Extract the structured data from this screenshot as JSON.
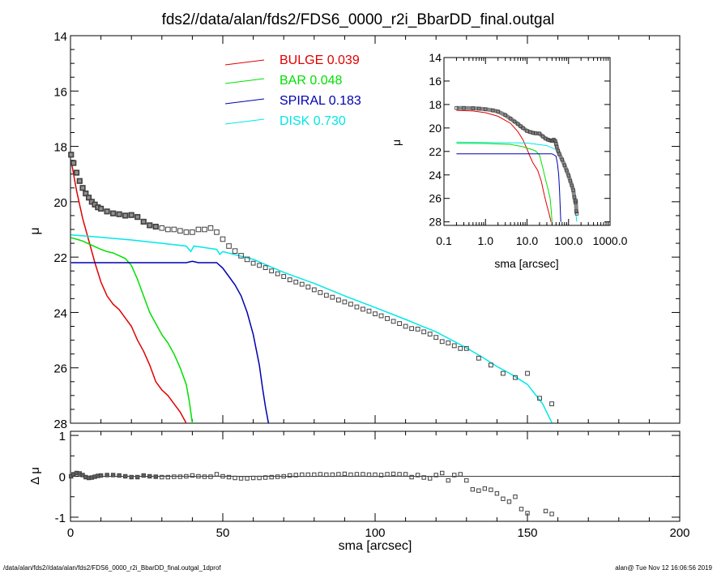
{
  "title": "fds2//data/alan/fds2/FDS6_0000_r2i_BbarDD_final.outgal",
  "footer": {
    "left": "/data/alan/fds2//data/alan/fds2/FDS6_0000_r2i_BbarDD_final.outgal_1dprof",
    "right": "alan@  Tue Nov 12 16:06:56 2019"
  },
  "colors": {
    "bulge": "#e00000",
    "bar": "#00e000",
    "spiral": "#0000b0",
    "disk": "#00e8e8",
    "data": "#404040"
  },
  "chart_data": [
    {
      "type": "line",
      "panel": "main-profile",
      "xlabel": "",
      "ylabel": "μ",
      "xlim": [
        0,
        200
      ],
      "ylim": [
        28,
        14
      ],
      "y_inverted": true,
      "xticks": [
        0,
        50,
        100,
        150,
        200
      ],
      "yticks": [
        14,
        16,
        18,
        20,
        22,
        24,
        26,
        28
      ],
      "xtick_labels": [
        "",
        "",
        "",
        "",
        ""
      ],
      "ytick_labels": [
        "14",
        "16",
        "18",
        "20",
        "22",
        "24",
        "26",
        "28"
      ],
      "legend_position": "top-center",
      "legend": [
        {
          "name": "BULGE",
          "value": "0.039",
          "color": "#e00000"
        },
        {
          "name": "BAR",
          "value": "0.048",
          "color": "#00e000"
        },
        {
          "name": "SPIRAL",
          "value": "0.183",
          "color": "#0000b0"
        },
        {
          "name": "DISK",
          "value": "0.730",
          "color": "#00e8e8"
        }
      ],
      "series": [
        {
          "name": "BULGE",
          "color": "#e00000",
          "x": [
            0.2,
            1,
            2,
            4,
            6,
            8,
            10,
            12,
            14,
            16,
            18,
            20,
            22,
            24,
            26,
            28,
            30,
            32,
            34,
            36,
            38
          ],
          "y": [
            18.5,
            19.0,
            19.6,
            20.6,
            21.4,
            22.2,
            22.9,
            23.4,
            23.7,
            23.9,
            24.2,
            24.5,
            25.0,
            25.4,
            25.9,
            26.5,
            26.8,
            27.0,
            27.3,
            27.6,
            28.0
          ]
        },
        {
          "name": "BAR",
          "color": "#00e000",
          "x": [
            0.2,
            2,
            4,
            6,
            8,
            10,
            12,
            14,
            16,
            18,
            20,
            22,
            24,
            26,
            28,
            30,
            32,
            34,
            36,
            38,
            39,
            39.5,
            40
          ],
          "y": [
            21.3,
            21.35,
            21.42,
            21.52,
            21.62,
            21.72,
            21.8,
            21.85,
            21.95,
            22.05,
            22.3,
            22.8,
            23.4,
            24.0,
            24.4,
            24.8,
            25.1,
            25.5,
            26.0,
            26.6,
            27.2,
            27.6,
            28.0
          ]
        },
        {
          "name": "SPIRAL",
          "color": "#0000b0",
          "x": [
            0.2,
            10,
            20,
            30,
            38,
            40,
            42,
            48,
            50,
            52,
            54,
            56,
            58,
            60,
            62,
            63,
            64,
            65
          ],
          "y": [
            22.2,
            22.2,
            22.2,
            22.2,
            22.2,
            22.15,
            22.2,
            22.2,
            22.4,
            22.7,
            23.0,
            23.4,
            24.0,
            24.8,
            25.9,
            26.7,
            27.4,
            28.0
          ]
        },
        {
          "name": "DISK",
          "color": "#00e8e8",
          "x": [
            0.2,
            10,
            20,
            30,
            38,
            39.5,
            40.5,
            48,
            49,
            50,
            60,
            70,
            80,
            90,
            100,
            110,
            120,
            130,
            135,
            140,
            145,
            150,
            155,
            158
          ],
          "y": [
            21.2,
            21.28,
            21.38,
            21.5,
            21.6,
            21.8,
            21.6,
            21.72,
            21.9,
            21.8,
            22.08,
            22.55,
            22.95,
            23.4,
            23.82,
            24.25,
            24.7,
            25.28,
            25.6,
            25.95,
            26.25,
            26.6,
            27.3,
            27.98
          ]
        },
        {
          "name": "data",
          "color": "#404040",
          "style": "markers",
          "x": [
            0.2,
            1,
            2,
            3,
            4,
            5,
            6,
            7,
            8,
            9,
            10,
            12,
            14,
            16,
            18,
            20,
            22,
            24,
            26,
            28,
            30,
            32,
            34,
            36,
            38,
            40,
            42,
            44,
            46,
            48,
            50,
            52,
            54,
            56,
            58,
            60,
            62,
            64,
            66,
            68,
            70,
            72,
            74,
            76,
            78,
            80,
            82,
            84,
            86,
            88,
            90,
            92,
            94,
            96,
            98,
            100,
            102,
            104,
            106,
            108,
            110,
            112,
            114,
            116,
            118,
            120,
            122,
            124,
            126,
            128,
            130,
            134,
            138,
            142,
            146,
            150,
            154,
            158
          ],
          "y": [
            18.3,
            18.6,
            18.95,
            19.25,
            19.5,
            19.7,
            19.85,
            20.0,
            20.1,
            20.2,
            20.25,
            20.35,
            20.42,
            20.45,
            20.5,
            20.48,
            20.55,
            20.72,
            20.85,
            20.9,
            20.95,
            21.0,
            21.0,
            21.05,
            21.1,
            21.1,
            21.0,
            21.0,
            20.95,
            21.1,
            21.35,
            21.6,
            21.78,
            21.95,
            22.08,
            22.22,
            22.3,
            22.38,
            22.5,
            22.6,
            22.7,
            22.82,
            22.9,
            22.98,
            23.08,
            23.18,
            23.28,
            23.38,
            23.45,
            23.55,
            23.62,
            23.7,
            23.8,
            23.88,
            23.95,
            24.05,
            24.12,
            24.22,
            24.32,
            24.4,
            24.5,
            24.58,
            24.6,
            24.7,
            24.78,
            24.9,
            25.05,
            25.1,
            25.2,
            25.3,
            25.3,
            25.65,
            25.9,
            26.2,
            26.35,
            26.2,
            27.1,
            27.3
          ]
        }
      ]
    },
    {
      "type": "scatter",
      "panel": "residuals",
      "xlabel": "sma [arcsec]",
      "ylabel": "Δ μ",
      "xlim": [
        0,
        200
      ],
      "ylim": [
        -1.1,
        1.1
      ],
      "xticks": [
        0,
        50,
        100,
        150,
        200
      ],
      "yticks": [
        1,
        0,
        -1
      ],
      "xtick_labels": [
        "0",
        "50",
        "100",
        "150",
        "200"
      ],
      "ytick_labels": [
        "1",
        "0",
        "-1"
      ],
      "zero_line": true,
      "series": [
        {
          "name": "residual",
          "color": "#404040",
          "x": [
            0.2,
            1,
            2,
            3,
            4,
            5,
            6,
            7,
            8,
            9,
            10,
            12,
            14,
            16,
            18,
            20,
            22,
            24,
            26,
            28,
            30,
            32,
            34,
            36,
            38,
            40,
            42,
            44,
            46,
            48,
            50,
            52,
            54,
            56,
            58,
            60,
            62,
            64,
            66,
            68,
            70,
            72,
            74,
            76,
            78,
            80,
            82,
            84,
            86,
            88,
            90,
            92,
            94,
            96,
            98,
            100,
            102,
            104,
            106,
            108,
            110,
            112,
            114,
            116,
            118,
            120,
            122,
            124,
            126,
            128,
            130,
            132,
            134,
            136,
            138,
            140,
            142,
            144,
            146,
            148,
            150,
            156,
            158
          ],
          "y": [
            0.0,
            0.05,
            0.08,
            0.07,
            0.03,
            -0.02,
            -0.04,
            -0.03,
            -0.01,
            0.01,
            0.02,
            0.03,
            0.03,
            0.02,
            0.0,
            -0.02,
            -0.02,
            0.02,
            0.0,
            -0.01,
            -0.02,
            -0.02,
            -0.01,
            -0.01,
            0.0,
            0.02,
            0.0,
            -0.01,
            -0.01,
            0.05,
            0.0,
            -0.02,
            -0.04,
            -0.05,
            -0.05,
            -0.04,
            -0.04,
            -0.03,
            -0.02,
            -0.01,
            0.0,
            0.02,
            0.03,
            0.04,
            0.04,
            0.04,
            0.05,
            0.04,
            0.04,
            0.05,
            0.06,
            0.04,
            0.05,
            0.05,
            0.04,
            0.04,
            0.03,
            0.05,
            0.06,
            0.05,
            0.05,
            -0.02,
            0.03,
            -0.03,
            -0.05,
            0.03,
            0.08,
            -0.1,
            0.03,
            0.05,
            -0.1,
            -0.32,
            -0.35,
            -0.3,
            -0.33,
            -0.42,
            -0.55,
            -0.62,
            -0.5,
            -0.8,
            -0.9,
            -0.85,
            -0.92
          ]
        }
      ]
    },
    {
      "type": "line",
      "panel": "inset-log",
      "xlabel": "sma [arcsec]",
      "ylabel": "μ",
      "xscale": "log",
      "xlim": [
        0.1,
        1000
      ],
      "ylim": [
        28.3,
        14
      ],
      "y_inverted": true,
      "xticks": [
        0.1,
        1,
        10,
        100,
        1000
      ],
      "yticks": [
        14,
        16,
        18,
        20,
        22,
        24,
        26,
        28
      ],
      "xtick_labels": [
        "0.1",
        "1.0",
        "10.0",
        "100.0",
        "1000.0"
      ],
      "ytick_labels": [
        "14",
        "16",
        "18",
        "20",
        "22",
        "24",
        "26",
        "28"
      ],
      "series": [
        {
          "name": "BULGE",
          "color": "#e00000",
          "x": [
            0.2,
            0.5,
            1,
            2,
            4,
            6,
            8,
            10,
            12,
            14,
            18,
            22,
            26,
            30,
            34,
            38
          ],
          "y": [
            18.5,
            18.55,
            18.7,
            19.0,
            19.6,
            20.3,
            21.0,
            21.8,
            22.5,
            23.0,
            23.6,
            24.5,
            25.7,
            26.6,
            27.3,
            28.0
          ]
        },
        {
          "name": "BAR",
          "color": "#00e000",
          "x": [
            0.2,
            1,
            4,
            8,
            12,
            16,
            20,
            24,
            28,
            32,
            36,
            38,
            40
          ],
          "y": [
            21.3,
            21.32,
            21.4,
            21.6,
            21.8,
            21.95,
            22.3,
            23.4,
            24.4,
            25.2,
            26.0,
            26.9,
            28.0
          ]
        },
        {
          "name": "SPIRAL",
          "color": "#0000b0",
          "x": [
            0.2,
            10,
            40,
            50,
            54,
            58,
            61,
            63,
            65
          ],
          "y": [
            22.2,
            22.2,
            22.2,
            22.4,
            23.0,
            24.0,
            25.4,
            26.8,
            28.0
          ]
        },
        {
          "name": "DISK",
          "color": "#00e8e8",
          "x": [
            0.2,
            10,
            30,
            50,
            70,
            100,
            130,
            158
          ],
          "y": [
            21.2,
            21.28,
            21.5,
            21.85,
            22.55,
            23.82,
            25.28,
            27.98
          ]
        },
        {
          "name": "data",
          "color": "#404040",
          "style": "markers",
          "x": [
            0.2,
            0.3,
            0.5,
            0.7,
            1,
            1.5,
            2,
            3,
            4,
            5,
            6,
            7,
            8,
            10,
            12,
            14,
            16,
            20,
            24,
            28,
            32,
            36,
            40,
            44,
            48,
            50,
            52,
            56,
            60,
            70,
            80,
            90,
            100,
            110,
            120,
            130,
            138,
            146,
            150,
            154,
            158
          ],
          "y": [
            18.3,
            18.3,
            18.32,
            18.35,
            18.4,
            18.5,
            18.6,
            18.9,
            19.2,
            19.45,
            19.65,
            19.85,
            20.0,
            20.25,
            20.35,
            20.42,
            20.45,
            20.48,
            20.72,
            20.9,
            21.0,
            21.05,
            21.1,
            21.0,
            21.1,
            21.35,
            21.6,
            21.95,
            22.22,
            22.7,
            23.18,
            23.62,
            24.05,
            24.5,
            24.9,
            25.3,
            25.9,
            26.35,
            26.2,
            27.1,
            27.3
          ]
        }
      ]
    }
  ]
}
